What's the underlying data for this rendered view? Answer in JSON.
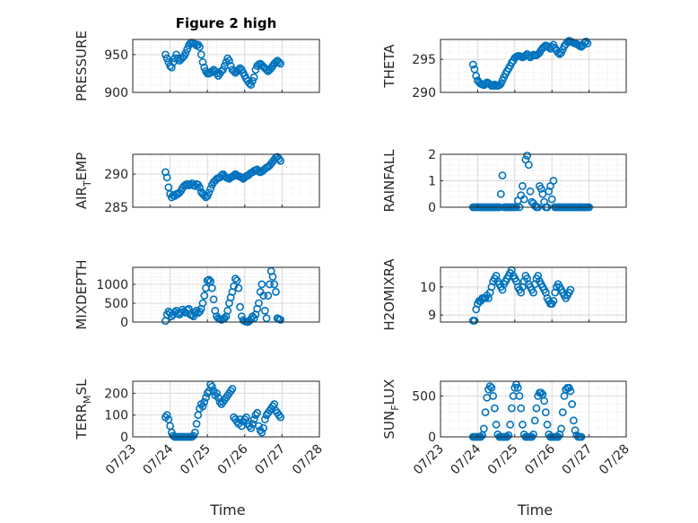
{
  "figure_title": "Figure 2 high",
  "x_axis_label": "Time",
  "date_ticks": [
    "07/23",
    "07/24",
    "07/25",
    "07/26",
    "07/27",
    "07/28"
  ],
  "colors": {
    "marker": "#0072BD",
    "axis": "#262626",
    "grid": "#d9d9d9"
  },
  "chart_data": [
    {
      "type": "scatter",
      "title": "Figure 2 high",
      "ylabel": {
        "main": "PRESSURE",
        "sub": ""
      },
      "ylim": [
        900,
        970
      ],
      "yticks": [
        900,
        950
      ],
      "grid": true,
      "x_start": "07/23 00:00",
      "x_end": "07/28 00:00",
      "time_step_hours": 1,
      "first_time": "07/23 21:00",
      "y": [
        950,
        945,
        940,
        935,
        933,
        940,
        945,
        950,
        945,
        942,
        944,
        946,
        948,
        952,
        957,
        962,
        965,
        966,
        965,
        964,
        962,
        963,
        960,
        950,
        940,
        933,
        928,
        925,
        925,
        926,
        928,
        930,
        928,
        925,
        922,
        925,
        928,
        930,
        935,
        940,
        945,
        942,
        935,
        930,
        928,
        926,
        928,
        930,
        932,
        930,
        926,
        922,
        918,
        915,
        912,
        910,
        915,
        920,
        930,
        935,
        937,
        938,
        936,
        934,
        932,
        930,
        928,
        930,
        932,
        935,
        938,
        940,
        942,
        940,
        938
      ]
    },
    {
      "type": "scatter",
      "title": "",
      "ylabel": {
        "main": "THETA",
        "sub": ""
      },
      "ylim": [
        290,
        298
      ],
      "yticks": [
        290,
        295
      ],
      "grid": true,
      "x_start": "07/23 00:00",
      "x_end": "07/28 00:00",
      "time_step_hours": 1,
      "first_time": "07/23 21:00",
      "y": [
        294.2,
        293.5,
        292.5,
        291.8,
        291.5,
        291.3,
        291.2,
        291.1,
        291.3,
        291.5,
        291.4,
        291.2,
        291,
        291,
        291.2,
        291,
        291,
        291.1,
        291.3,
        291.8,
        292.3,
        292.8,
        293.2,
        293.6,
        294,
        294.5,
        294.8,
        295.2,
        295.4,
        295.5,
        295.5,
        295.4,
        295.3,
        295.4,
        295.6,
        295.8,
        295.5,
        295.3,
        295.5,
        295.7,
        295.6,
        295.6,
        295.8,
        296,
        296.4,
        296.7,
        296.9,
        297.1,
        297,
        296.8,
        296.6,
        296.9,
        297.2,
        296.7,
        296.3,
        296,
        295.8,
        296,
        296.5,
        297,
        297.3,
        297.6,
        297.8,
        297.7,
        297.6,
        297.5,
        297.4,
        297.3,
        297.2,
        297,
        296.9,
        297.1,
        297.5,
        297.7,
        297.4
      ]
    },
    {
      "type": "scatter",
      "title": "",
      "ylabel": {
        "main": "AIR",
        "sub": "T",
        "rest": "EMP"
      },
      "ylim": [
        285,
        293
      ],
      "yticks": [
        285,
        290
      ],
      "grid": true,
      "x_start": "07/23 00:00",
      "x_end": "07/28 00:00",
      "time_step_hours": 1,
      "first_time": "07/23 21:00",
      "y": [
        290.3,
        289.5,
        288,
        287,
        286.5,
        286.8,
        286.7,
        287,
        287,
        287.2,
        287.5,
        287.9,
        288.2,
        288.4,
        288.5,
        288.3,
        288.4,
        288.6,
        288.3,
        288.2,
        288.5,
        288.4,
        288,
        287.3,
        287,
        286.8,
        286.5,
        286.7,
        287.2,
        287.8,
        288.4,
        288.8,
        289,
        289.3,
        289.4,
        289.5,
        289.8,
        290,
        289.7,
        289.5,
        289.4,
        289.3,
        289.5,
        289.6,
        289.8,
        290,
        289.8,
        289.7,
        289.6,
        289.5,
        289.3,
        289.5,
        289.7,
        289.8,
        290,
        290.2,
        290.3,
        290.5,
        290.6,
        290.7,
        290.4,
        290.3,
        290.4,
        290.6,
        290.8,
        291,
        291.1,
        291.3,
        291.6,
        291.9,
        292.2,
        292.5,
        292.6,
        292.3,
        292
      ]
    },
    {
      "type": "scatter",
      "title": "",
      "ylabel": {
        "main": "RAINFALL",
        "sub": ""
      },
      "ylim": [
        0,
        2
      ],
      "yticks": [
        0,
        1,
        2
      ],
      "grid": true,
      "x_start": "07/23 00:00",
      "x_end": "07/28 00:00",
      "time_step_hours": 1,
      "first_time": "07/23 21:00",
      "y": [
        0,
        0,
        0,
        0,
        0,
        0,
        0,
        0,
        0,
        0,
        0,
        0,
        0,
        0,
        0,
        0,
        0,
        0,
        0.5,
        1.2,
        0,
        0,
        0,
        0,
        0,
        0,
        0,
        0,
        0,
        0.25,
        0,
        0.45,
        0.8,
        0.3,
        1.8,
        1.95,
        1.6,
        0.6,
        0.2,
        0.15,
        0.05,
        0,
        0,
        0.8,
        0.7,
        0.5,
        0.2,
        0,
        0,
        0.6,
        0.8,
        0.3,
        1,
        0,
        0,
        0,
        0,
        0,
        0,
        0,
        0,
        0,
        0,
        0,
        0,
        0,
        0,
        0,
        0,
        0,
        0,
        0,
        0,
        0,
        0,
        0
      ]
    },
    {
      "type": "scatter",
      "title": "",
      "ylabel": {
        "main": "MIXDEPTH",
        "sub": ""
      },
      "ylim": [
        0,
        1450
      ],
      "yticks": [
        0,
        500,
        1000
      ],
      "grid": true,
      "x_start": "07/23 00:00",
      "x_end": "07/28 00:00",
      "time_step_hours": 1,
      "first_time": "07/23 21:00",
      "y": [
        30,
        200,
        280,
        240,
        150,
        200,
        260,
        300,
        230,
        200,
        250,
        330,
        280,
        250,
        320,
        350,
        200,
        180,
        150,
        250,
        300,
        240,
        280,
        350,
        500,
        700,
        900,
        1100,
        1120,
        1080,
        900,
        600,
        300,
        150,
        100,
        80,
        60,
        80,
        100,
        150,
        300,
        500,
        650,
        800,
        950,
        1150,
        1100,
        900,
        400,
        150,
        50,
        20,
        10,
        0,
        30,
        80,
        150,
        100,
        200,
        350,
        500,
        800,
        1000,
        700,
        300,
        100,
        700,
        1000,
        1350,
        1200,
        1000,
        800,
        100,
        80,
        60
      ]
    },
    {
      "type": "scatter",
      "title": "",
      "ylabel": {
        "main": "H2OMIXRA",
        "sub": ""
      },
      "ylim": [
        8.75,
        10.7
      ],
      "yticks": [
        9,
        10
      ],
      "grid": true,
      "x_start": "07/23 00:00",
      "x_end": "07/28 00:00",
      "time_step_hours": 1,
      "first_time": "07/23 21:00",
      "y": [
        8.8,
        8.8,
        9.2,
        9.4,
        9.5,
        9.5,
        9.6,
        9.6,
        9.6,
        9.7,
        9.6,
        9.8,
        10.0,
        10.2,
        10.3,
        10.4,
        10.2,
        10.1,
        10.0,
        9.9,
        10.1,
        10.2,
        10.3,
        10.4,
        10.5,
        10.6,
        10.4,
        10.3,
        10.2,
        10.0,
        9.9,
        9.8,
        10.0,
        10.2,
        10.4,
        10.3,
        10.1,
        10.0,
        9.9,
        9.8,
        10.1,
        10.3,
        10.4,
        10.2,
        10.1,
        10.0,
        9.9,
        9.8,
        9.6,
        9.5,
        9.4,
        9.4,
        9.5,
        9.8,
        10.0,
        10.1,
        10.0,
        9.9,
        9.8,
        9.7,
        9.6,
        9.7,
        9.8,
        9.9
      ]
    },
    {
      "type": "scatter",
      "title": "",
      "ylabel": {
        "main": "TERR",
        "sub": "M",
        "rest": "SL"
      },
      "ylim": [
        0,
        255
      ],
      "yticks": [
        0,
        100,
        200
      ],
      "grid": true,
      "x_start": "07/23 00:00",
      "x_end": "07/28 00:00",
      "time_step_hours": 1,
      "first_time": "07/23 21:00",
      "y": [
        90,
        100,
        80,
        50,
        20,
        5,
        0,
        0,
        0,
        0,
        0,
        0,
        0,
        0,
        0,
        0,
        0,
        0,
        5,
        20,
        60,
        100,
        130,
        150,
        140,
        160,
        180,
        200,
        210,
        240,
        230,
        210,
        190,
        200,
        180,
        160,
        150,
        160,
        170,
        180,
        190,
        200,
        210,
        220,
        90,
        80,
        70,
        60,
        80,
        50,
        70,
        80,
        90,
        60,
        50,
        40,
        60,
        80,
        100,
        110,
        50,
        30,
        20,
        40,
        80,
        100,
        110,
        120,
        130,
        140,
        150,
        120,
        110,
        100,
        90
      ]
    },
    {
      "type": "scatter",
      "title": "",
      "ylabel": {
        "main": "SUN",
        "sub": "F",
        "rest": "LUX"
      },
      "ylim": [
        0,
        680
      ],
      "yticks": [
        0,
        500
      ],
      "grid": true,
      "x_start": "07/23 00:00",
      "x_end": "07/28 00:00",
      "time_step_hours": 1,
      "first_time": "07/23 21:00",
      "y": [
        0,
        0,
        0,
        0,
        0,
        0,
        20,
        100,
        300,
        480,
        580,
        620,
        600,
        500,
        350,
        150,
        30,
        0,
        0,
        0,
        0,
        0,
        0,
        20,
        150,
        350,
        500,
        600,
        640,
        600,
        500,
        350,
        150,
        30,
        0,
        0,
        0,
        0,
        0,
        30,
        200,
        350,
        500,
        540,
        540,
        520,
        440,
        300,
        150,
        30,
        0,
        0,
        0,
        0,
        0,
        0,
        30,
        100,
        300,
        500,
        580,
        600,
        600,
        560,
        400,
        200,
        80,
        20,
        0,
        0,
        0
      ]
    }
  ]
}
